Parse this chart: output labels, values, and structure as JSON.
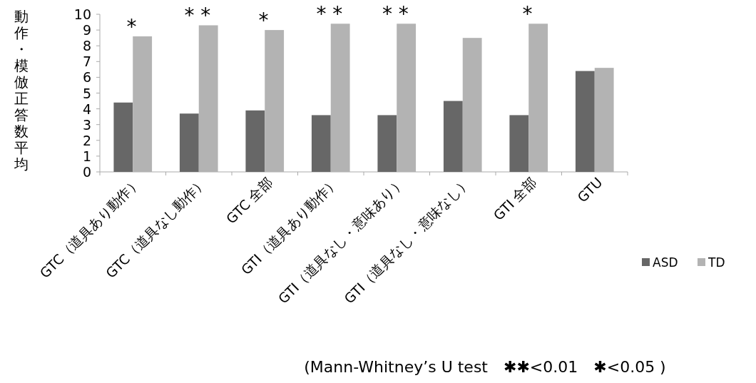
{
  "chart_data": {
    "type": "bar",
    "ylabel": "動作・模倣正答数平均",
    "categories": [
      "GTC（道具あり動作）",
      "GTC（道具なし動作）",
      "GTC 全部",
      "GTI（道具あり動作）",
      "GTI（道具なし・意味あり）",
      "GTI（道具なし・意味なし）",
      "GTI 全部",
      "GTU"
    ],
    "series": [
      {
        "name": "ASD",
        "color": "#676767",
        "values": [
          4.4,
          3.7,
          3.9,
          3.6,
          3.6,
          4.5,
          3.6,
          6.4
        ]
      },
      {
        "name": "TD",
        "color": "#b3b3b3",
        "values": [
          8.6,
          9.3,
          9.0,
          9.4,
          9.4,
          8.5,
          9.4,
          6.6
        ]
      }
    ],
    "ylim": [
      0,
      10
    ],
    "yticks": [
      0,
      1,
      2,
      3,
      4,
      5,
      6,
      7,
      8,
      9,
      10
    ],
    "grid": false,
    "legend": "right",
    "annotations": [
      {
        "text": "*",
        "x": "GTC（道具あり動作）",
        "y": 8.6
      },
      {
        "text": "* *",
        "x": "GTC（道具なし動作）",
        "y": 9.3
      },
      {
        "text": "*",
        "x": "GTC 全部",
        "y": 9.0
      },
      {
        "text": "* *",
        "x": "GTI（道具あり動作）",
        "y": 9.4
      },
      {
        "text": "* *",
        "x": "GTI（道具なし・意味あり）",
        "y": 9.4
      },
      {
        "text": "*",
        "x": "GTI 全部",
        "y": 9.4
      },
      "(Mann-Whitney’s U test　✱✱<0.01　✱<0.05 )"
    ]
  }
}
